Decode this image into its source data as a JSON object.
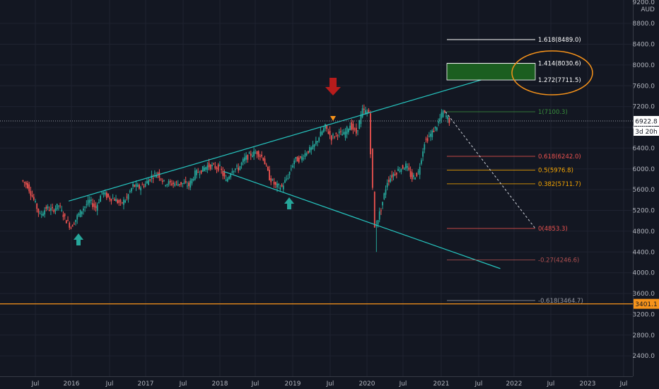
{
  "chart_data": {
    "type": "candlestick",
    "currency": "AUD",
    "y_ticks": [
      2400,
      2800,
      3200,
      3600,
      4000,
      4400,
      4800,
      5200,
      5600,
      6000,
      6400,
      6800,
      7200,
      7600,
      8000,
      8400,
      8800
    ],
    "y_top_label": "9200.0",
    "x_ticks": [
      "Jul",
      "2016",
      "Jul",
      "2017",
      "Jul",
      "2018",
      "Jul",
      "2019",
      "Jul",
      "2020",
      "Jul",
      "2021",
      "Jul",
      "2022",
      "Jul",
      "2023",
      "Jul"
    ],
    "price_series": [
      [
        "2015-06",
        5780
      ],
      [
        "2015-07",
        5680
      ],
      [
        "2015-08",
        5400
      ],
      [
        "2015-09",
        5100
      ],
      [
        "2015-10",
        5250
      ],
      [
        "2015-11",
        5200
      ],
      [
        "2015-12",
        5300
      ],
      [
        "2016-01",
        5050
      ],
      [
        "2016-02",
        4880
      ],
      [
        "2016-03",
        5080
      ],
      [
        "2016-04",
        5250
      ],
      [
        "2016-05",
        5380
      ],
      [
        "2016-06",
        5250
      ],
      [
        "2016-07",
        5550
      ],
      [
        "2016-08",
        5450
      ],
      [
        "2016-09",
        5420
      ],
      [
        "2016-10",
        5320
      ],
      [
        "2016-11",
        5440
      ],
      [
        "2016-12",
        5680
      ],
      [
        "2017-01",
        5640
      ],
      [
        "2017-02",
        5710
      ],
      [
        "2017-03",
        5860
      ],
      [
        "2017-04",
        5920
      ],
      [
        "2017-05",
        5730
      ],
      [
        "2017-06",
        5720
      ],
      [
        "2017-07",
        5720
      ],
      [
        "2017-08",
        5720
      ],
      [
        "2017-09",
        5680
      ],
      [
        "2017-10",
        5910
      ],
      [
        "2017-11",
        5970
      ],
      [
        "2017-12",
        6060
      ],
      [
        "2018-01",
        6040
      ],
      [
        "2018-02",
        6020
      ],
      [
        "2018-03",
        5760
      ],
      [
        "2018-04",
        6000
      ],
      [
        "2018-05",
        6010
      ],
      [
        "2018-06",
        6190
      ],
      [
        "2018-07",
        6280
      ],
      [
        "2018-08",
        6320
      ],
      [
        "2018-09",
        6210
      ],
      [
        "2018-10",
        5830
      ],
      [
        "2018-11",
        5670
      ],
      [
        "2018-12",
        5650
      ],
      [
        "2019-01",
        5860
      ],
      [
        "2019-02",
        6170
      ],
      [
        "2019-03",
        6190
      ],
      [
        "2019-04",
        6330
      ],
      [
        "2019-05",
        6400
      ],
      [
        "2019-06",
        6620
      ],
      [
        "2019-07",
        6810
      ],
      [
        "2019-08",
        6600
      ],
      [
        "2019-09",
        6690
      ],
      [
        "2019-10",
        6660
      ],
      [
        "2019-11",
        6850
      ],
      [
        "2019-12",
        6690
      ],
      [
        "2020-01",
        7120
      ],
      [
        "2020-02",
        7080
      ],
      [
        "2020-03",
        4860
      ],
      [
        "2020-04",
        5240
      ],
      [
        "2020-05",
        5760
      ],
      [
        "2020-06",
        5900
      ],
      [
        "2020-07",
        6000
      ],
      [
        "2020-08",
        6060
      ],
      [
        "2020-09",
        5820
      ],
      [
        "2020-10",
        5930
      ],
      [
        "2020-11",
        6520
      ],
      [
        "2020-12",
        6660
      ],
      [
        "2021-01",
        6830
      ],
      [
        "2021-02",
        7100
      ],
      [
        "2021-03",
        6922.8
      ]
    ],
    "fib_levels": [
      {
        "label": "1.618(8489.0)",
        "value": 8489.0
      },
      {
        "label": "1.414(8030.6)",
        "value": 8030.6
      },
      {
        "label": "1.272(7711.5)",
        "value": 7711.5
      },
      {
        "label": "1(7100.3)",
        "value": 7100.3
      },
      {
        "label": "0.618(6242.0)",
        "value": 6242.0
      },
      {
        "label": "0.5(5976.8)",
        "value": 5976.8
      },
      {
        "label": "0.382(5711.7)",
        "value": 5711.7
      },
      {
        "label": "0(4853.3)",
        "value": 4853.3
      },
      {
        "label": "-0.27(4246.6)",
        "value": 4246.6
      },
      {
        "label": "-0.618(3464.7)",
        "value": 3464.7
      }
    ],
    "current_price": {
      "label": "6922.8",
      "value": 6922.8
    },
    "countdown": "3d 20h",
    "horizontal_level": {
      "label": "3401.1",
      "value": 3401.1
    },
    "target_zone": {
      "from": 7711.5,
      "to": 8030.6
    }
  },
  "colors": {
    "background": "#131722",
    "up_candle": "#26a69a",
    "down_candle": "#ef5350",
    "trendline": "#26c6c0",
    "level_line": "#f7931a",
    "target_zone": "#1b5e20",
    "arrow_down": "#b71c1c",
    "arrow_up": "#26a69a"
  }
}
